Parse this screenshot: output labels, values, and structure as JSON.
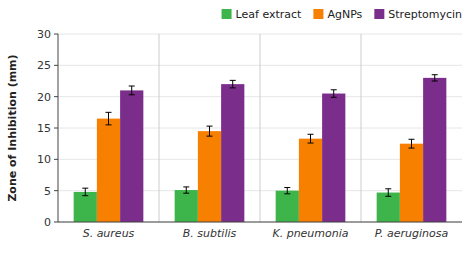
{
  "chart_data": {
    "type": "bar",
    "categories": [
      "S. aureus",
      "B. subtilis",
      "K. pneumonia",
      "P. aeruginosa"
    ],
    "series": [
      {
        "name": "Leaf extract",
        "color": "#3db54a",
        "values": [
          4.8,
          5.1,
          5.0,
          4.7
        ],
        "errors": [
          0.6,
          0.5,
          0.5,
          0.6
        ]
      },
      {
        "name": "AgNPs",
        "color": "#f78000",
        "values": [
          16.5,
          14.5,
          13.3,
          12.5
        ],
        "errors": [
          1.0,
          0.8,
          0.7,
          0.7
        ]
      },
      {
        "name": "Streptomycin",
        "color": "#7b2d8b",
        "values": [
          21.0,
          22.0,
          20.5,
          23.0
        ],
        "errors": [
          0.7,
          0.6,
          0.6,
          0.5
        ]
      }
    ],
    "ylabel": "Zone of Inhibition (mm)",
    "ylim": [
      0,
      30
    ],
    "yticks": [
      0,
      5,
      10,
      15,
      20,
      25,
      30
    ],
    "legend": "upper right",
    "grid": false
  }
}
